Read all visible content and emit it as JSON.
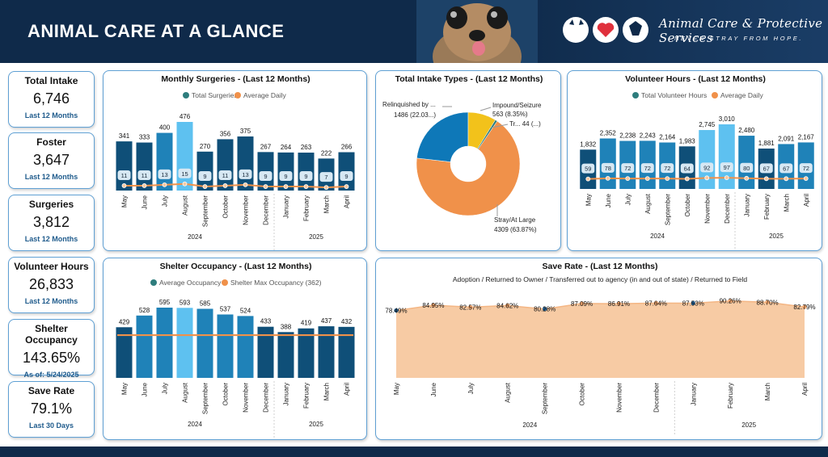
{
  "header": {
    "title": "ANIMAL CARE AT A GLANCE",
    "org_name": "Animal Care & Protective Services",
    "org_tagline": "NEVER STRAY FROM HOPE."
  },
  "kpis": [
    {
      "title": "Total Intake",
      "value": "6,746",
      "sub": "Last 12 Months"
    },
    {
      "title": "Foster",
      "value": "3,647",
      "sub": "Last 12 Months"
    },
    {
      "title": "Surgeries",
      "value": "3,812",
      "sub": "Last 12 Months"
    },
    {
      "title": "Volunteer Hours",
      "value": "26,833",
      "sub": "Last 12 Months"
    },
    {
      "title": "Shelter Occupancy",
      "value": "143.65%",
      "sub": "As of: 5/24/2025"
    },
    {
      "title": "Save Rate",
      "value": "79.1%",
      "sub": "Last 30 Days"
    }
  ],
  "colors": {
    "navy": "#0f4f78",
    "mid": "#1f82b8",
    "light": "#5ec1f0",
    "orange": "#f0914a",
    "teal": "#2e7d7d",
    "yellow": "#f2c21b",
    "peach": "#f7cba4"
  },
  "chart_data": [
    {
      "id": "surgeries",
      "type": "bar",
      "title": "Monthly Surgeries - (Last 12 Months)",
      "legend": [
        "Total Surgeries",
        "Average Daily"
      ],
      "categories": [
        "May",
        "June",
        "July",
        "August",
        "September",
        "October",
        "November",
        "December",
        "January",
        "February",
        "March",
        "April"
      ],
      "years": [
        "2024",
        "2025"
      ],
      "series": [
        {
          "name": "Total Surgeries",
          "values": [
            341,
            333,
            400,
            476,
            270,
            356,
            375,
            267,
            264,
            263,
            222,
            266
          ]
        },
        {
          "name": "Average Daily",
          "values": [
            11,
            11,
            13,
            15,
            9,
            11,
            13,
            9,
            9,
            9,
            7,
            9
          ]
        }
      ],
      "shades": [
        "navy",
        "navy",
        "mid",
        "light",
        "navy",
        "navy",
        "navy",
        "navy",
        "navy",
        "navy",
        "navy",
        "navy"
      ]
    },
    {
      "id": "intake",
      "type": "pie",
      "title": "Total Intake Types - (Last 12 Months)",
      "slices": [
        {
          "label": "Stray/At Large",
          "value": 4309,
          "text": "4309 (63.87%)"
        },
        {
          "label": "Relinquished by ...",
          "value": 1486,
          "text": "1486 (22.03...)"
        },
        {
          "label": "Impound/Seizure",
          "value": 563,
          "text": "563 (8.35%)"
        },
        {
          "label": "Tr...",
          "value": 44,
          "text": "Tr... 44 (...)"
        }
      ]
    },
    {
      "id": "volunteer",
      "type": "bar",
      "title": "Volunteer Hours - (Last 12 Months)",
      "legend": [
        "Total Volunteer Hours",
        "Average Daily"
      ],
      "categories": [
        "May",
        "June",
        "July",
        "August",
        "September",
        "October",
        "November",
        "December",
        "January",
        "February",
        "March",
        "April"
      ],
      "years": [
        "2024",
        "2025"
      ],
      "series": [
        {
          "name": "Total Volunteer Hours",
          "values": [
            1832,
            2352,
            2238,
            2243,
            2164,
            1983,
            2745,
            3010,
            2480,
            1881,
            2091,
            2167
          ]
        },
        {
          "name": "Average Daily",
          "values": [
            59,
            78,
            72,
            72,
            72,
            64,
            92,
            97,
            80,
            67,
            67,
            72
          ]
        }
      ],
      "labels": [
        "1,832",
        "2,352",
        "2,238",
        "2,243",
        "2,164",
        "1,983",
        "2,745",
        "3,010",
        "2,480",
        "1,881",
        "2,091",
        "2,167"
      ],
      "shades": [
        "navy",
        "mid",
        "mid",
        "mid",
        "mid",
        "navy",
        "light",
        "light",
        "mid",
        "navy",
        "mid",
        "mid"
      ]
    },
    {
      "id": "occupancy",
      "type": "bar",
      "title": "Shelter Occupancy - (Last 12 Months)",
      "legend": [
        "Average Occupancy",
        "Shelter Max Occupancy (362)"
      ],
      "categories": [
        "May",
        "June",
        "July",
        "August",
        "September",
        "October",
        "November",
        "December",
        "January",
        "February",
        "March",
        "April"
      ],
      "years": [
        "2024",
        "2025"
      ],
      "series": [
        {
          "name": "Average Occupancy",
          "values": [
            429,
            528,
            595,
            593,
            585,
            537,
            524,
            433,
            388,
            419,
            437,
            432
          ]
        },
        {
          "name": "Shelter Max Occupancy",
          "values": [
            362,
            362,
            362,
            362,
            362,
            362,
            362,
            362,
            362,
            362,
            362,
            362
          ]
        }
      ],
      "shades": [
        "navy",
        "mid",
        "mid",
        "light",
        "mid",
        "mid",
        "mid",
        "navy",
        "navy",
        "navy",
        "navy",
        "navy"
      ]
    },
    {
      "id": "saverate",
      "type": "area",
      "title": "Save Rate - (Last 12 Months)",
      "subtitle": "Adoption / Returned to Owner / Transferred out to agency (in and out of state) / Returned to Field",
      "categories": [
        "May",
        "June",
        "July",
        "August",
        "September",
        "October",
        "November",
        "December",
        "January",
        "February",
        "March",
        "April"
      ],
      "years": [
        "2024",
        "2025"
      ],
      "values": [
        78.49,
        84.95,
        82.57,
        84.62,
        80.28,
        87.09,
        86.91,
        87.64,
        87.53,
        90.26,
        88.7,
        82.79
      ],
      "labels": [
        "78.49%",
        "84.95%",
        "82.57%",
        "84.62%",
        "80.28%",
        "87.09%",
        "86.91%",
        "87.64%",
        "87.53%",
        "90.26%",
        "88.70%",
        "82.79%"
      ]
    }
  ]
}
